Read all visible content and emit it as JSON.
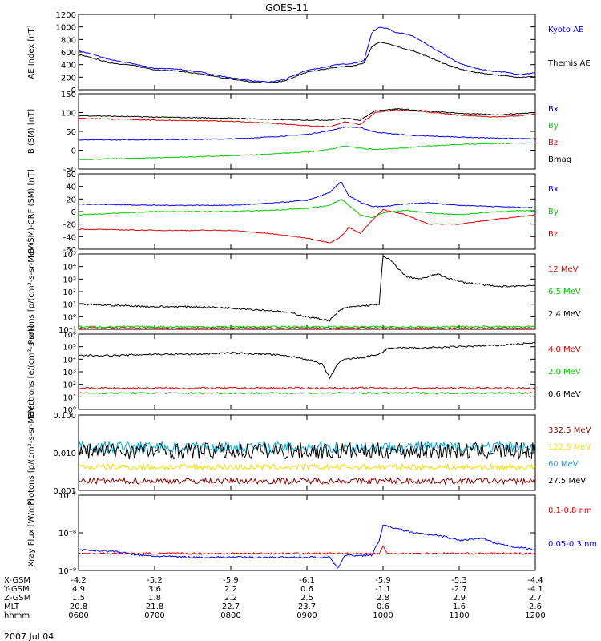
{
  "title": "GOES-11",
  "date": "2007 Jul 04",
  "colors": {
    "blue": "#0000ff",
    "green": "#00cc00",
    "red": "#dd0000",
    "black": "#000000",
    "darkred": "#8b0000",
    "yellow": "#eedd00",
    "cyan": "#00aadd"
  },
  "footer": {
    "rows": [
      {
        "label": "X-GSM",
        "values": [
          "-4.2",
          "-5.2",
          "-5.9",
          "-6.1",
          "-5.9",
          "-5.3",
          "-4.4"
        ]
      },
      {
        "label": "Y-GSM",
        "values": [
          "4.9",
          "3.6",
          "2.2",
          "0.6",
          "-1.1",
          "-2.7",
          "-4.1"
        ]
      },
      {
        "label": "Z-GSM",
        "values": [
          "1.5",
          "1.8",
          "2.2",
          "2.5",
          "2.8",
          "2.9",
          "2.7"
        ]
      },
      {
        "label": "MLT",
        "values": [
          "20.8",
          "21.8",
          "22.7",
          "23.7",
          "0.6",
          "1.6",
          "2.6"
        ]
      },
      {
        "label": "hhmm",
        "values": [
          "0600",
          "0700",
          "0800",
          "0900",
          "1000",
          "1100",
          "1200"
        ]
      }
    ]
  },
  "chart_data": [
    {
      "type": "line",
      "ylabel": "AE Index [nT]",
      "ylim": [
        0,
        1200
      ],
      "yticks": [
        "0",
        "200",
        "400",
        "600",
        "800",
        "1000",
        "1200"
      ],
      "scale": "linear",
      "xlim": [
        6.0,
        12.0
      ],
      "series": [
        {
          "name": "Kyoto AE",
          "color": "blue",
          "x": [
            6.0,
            6.2,
            6.4,
            6.7,
            7.0,
            7.3,
            7.6,
            8.0,
            8.3,
            8.5,
            8.7,
            9.0,
            9.2,
            9.4,
            9.6,
            9.75,
            9.85,
            9.95,
            10.05,
            10.15,
            10.25,
            10.4,
            10.6,
            10.8,
            11.0,
            11.2,
            11.4,
            11.6,
            11.8,
            12.0
          ],
          "y": [
            620,
            560,
            480,
            420,
            340,
            330,
            280,
            190,
            140,
            120,
            160,
            310,
            350,
            400,
            420,
            460,
            900,
            1000,
            980,
            920,
            900,
            850,
            700,
            560,
            420,
            350,
            300,
            280,
            240,
            270
          ]
        },
        {
          "name": "Themis AE",
          "color": "black",
          "x": [
            6.0,
            6.2,
            6.4,
            6.7,
            7.0,
            7.3,
            7.6,
            8.0,
            8.3,
            8.5,
            8.7,
            9.0,
            9.2,
            9.4,
            9.6,
            9.75,
            9.85,
            9.95,
            10.05,
            10.15,
            10.25,
            10.4,
            10.6,
            10.8,
            11.0,
            11.2,
            11.4,
            11.6,
            11.8,
            12.0
          ],
          "y": [
            560,
            500,
            430,
            390,
            320,
            300,
            250,
            170,
            120,
            110,
            140,
            280,
            320,
            360,
            380,
            420,
            680,
            760,
            740,
            700,
            660,
            620,
            520,
            420,
            330,
            280,
            250,
            220,
            200,
            210
          ]
        }
      ]
    },
    {
      "type": "line",
      "ylabel": "B (SM) [nT]",
      "ylim": [
        -50,
        150
      ],
      "yticks": [
        "-50",
        "0",
        "50",
        "100",
        "150"
      ],
      "scale": "linear",
      "xlim": [
        6.0,
        12.0
      ],
      "series": [
        {
          "name": "Bx",
          "color": "blue",
          "x": [
            6.0,
            7.0,
            8.0,
            8.5,
            9.0,
            9.3,
            9.5,
            9.7,
            9.9,
            10.2,
            10.5,
            11.0,
            11.5,
            12.0
          ],
          "y": [
            27,
            28,
            30,
            35,
            42,
            52,
            62,
            60,
            48,
            42,
            38,
            35,
            32,
            30
          ]
        },
        {
          "name": "By",
          "color": "green",
          "x": [
            6.0,
            7.0,
            8.0,
            8.5,
            9.0,
            9.3,
            9.5,
            9.7,
            9.9,
            10.2,
            10.5,
            11.0,
            11.5,
            12.0
          ],
          "y": [
            -25,
            -20,
            -15,
            -10,
            -5,
            2,
            12,
            5,
            2,
            5,
            10,
            15,
            18,
            20
          ]
        },
        {
          "name": "Bz",
          "color": "red",
          "x": [
            6.0,
            7.0,
            8.0,
            8.5,
            9.0,
            9.3,
            9.5,
            9.7,
            9.9,
            10.2,
            10.5,
            11.0,
            11.5,
            12.0
          ],
          "y": [
            85,
            80,
            77,
            72,
            65,
            62,
            75,
            68,
            100,
            108,
            103,
            93,
            88,
            95
          ]
        },
        {
          "name": "Bmag",
          "color": "black",
          "x": [
            6.0,
            7.0,
            8.0,
            8.5,
            9.0,
            9.3,
            9.5,
            9.7,
            9.9,
            10.2,
            10.5,
            11.0,
            11.5,
            12.0
          ],
          "y": [
            92,
            88,
            85,
            82,
            80,
            80,
            85,
            80,
            105,
            110,
            105,
            98,
            94,
            100
          ]
        }
      ]
    },
    {
      "type": "line",
      "ylabel": "B (SM)-CRF (SM) [nT]",
      "ylim": [
        -60,
        60
      ],
      "yticks": [
        "-60",
        "-40",
        "-20",
        "0",
        "20",
        "40",
        "60"
      ],
      "scale": "linear",
      "xlim": [
        6.0,
        12.0
      ],
      "series": [
        {
          "name": "Bx",
          "color": "blue",
          "x": [
            6.0,
            7.0,
            8.0,
            8.5,
            9.0,
            9.3,
            9.45,
            9.55,
            9.7,
            9.85,
            10.0,
            10.3,
            10.6,
            11.0,
            11.5,
            12.0
          ],
          "y": [
            12,
            10,
            10,
            13,
            18,
            30,
            48,
            25,
            15,
            8,
            8,
            12,
            14,
            10,
            8,
            6
          ]
        },
        {
          "name": "By",
          "color": "green",
          "x": [
            6.0,
            7.0,
            8.0,
            8.5,
            9.0,
            9.3,
            9.45,
            9.55,
            9.7,
            9.85,
            10.0,
            10.3,
            10.6,
            11.0,
            11.5,
            12.0
          ],
          "y": [
            -5,
            0,
            0,
            2,
            5,
            10,
            20,
            10,
            -5,
            -10,
            -2,
            2,
            -2,
            -5,
            0,
            2
          ]
        },
        {
          "name": "Bz",
          "color": "red",
          "x": [
            6.0,
            7.0,
            8.0,
            8.5,
            9.0,
            9.3,
            9.45,
            9.55,
            9.7,
            9.85,
            10.0,
            10.3,
            10.6,
            11.0,
            11.5,
            12.0
          ],
          "y": [
            -28,
            -30,
            -30,
            -35,
            -42,
            -50,
            -40,
            -25,
            -35,
            -15,
            3,
            -5,
            -20,
            -20,
            -12,
            -5
          ]
        }
      ]
    },
    {
      "type": "line",
      "ylabel": "Protons [p/(cm²-s-sr-MeV)]",
      "ylim": [
        -1,
        5
      ],
      "yticks": [
        "10⁻¹",
        "10⁰",
        "10¹",
        "10²",
        "10³",
        "10⁴",
        "10⁵"
      ],
      "scale": "log",
      "xlim": [
        6.0,
        12.0
      ],
      "series": [
        {
          "name": "12 MeV",
          "color": "red",
          "x": [
            6.0,
            12.0
          ],
          "y": [
            -0.9,
            -0.9
          ]
        },
        {
          "name": "6.5 MeV",
          "color": "green",
          "x": [
            6.0,
            12.0
          ],
          "y": [
            -0.8,
            -0.8
          ]
        },
        {
          "name": "2.4 MeV",
          "color": "black",
          "x": [
            6.0,
            6.5,
            7.0,
            7.5,
            8.0,
            8.5,
            8.8,
            9.0,
            9.2,
            9.3,
            9.45,
            9.6,
            9.8,
            9.95,
            10.0,
            10.1,
            10.3,
            10.5,
            10.7,
            11.0,
            11.5,
            12.0
          ],
          "y": [
            1.0,
            0.9,
            0.8,
            0.8,
            0.7,
            0.5,
            0.3,
            0.0,
            -0.2,
            -0.3,
            0.6,
            0.8,
            0.9,
            1.0,
            4.8,
            4.5,
            3.2,
            3.0,
            3.4,
            2.8,
            2.4,
            2.5
          ]
        }
      ]
    },
    {
      "type": "line",
      "ylabel": "Electrons [e/(cm²-s-sr)]",
      "ylim": [
        0,
        6
      ],
      "yticks": [
        "10⁰",
        "10¹",
        "10²",
        "10³",
        "10⁴",
        "10⁵",
        "10⁶"
      ],
      "scale": "log",
      "xlim": [
        6.0,
        12.0
      ],
      "series": [
        {
          "name": "4.0 MeV",
          "color": "red",
          "x": [
            6.0,
            12.0
          ],
          "y": [
            1.7,
            1.7
          ]
        },
        {
          "name": "2.0 MeV",
          "color": "green",
          "x": [
            6.0,
            12.0
          ],
          "y": [
            1.3,
            1.3
          ]
        },
        {
          "name": "0.6 MeV",
          "color": "black",
          "x": [
            6.0,
            6.5,
            7.0,
            7.5,
            8.0,
            8.5,
            8.8,
            9.0,
            9.2,
            9.3,
            9.4,
            9.5,
            9.7,
            9.95,
            10.05,
            10.2,
            10.5,
            11.0,
            11.5,
            12.0
          ],
          "y": [
            4.3,
            4.3,
            4.4,
            4.4,
            4.5,
            4.4,
            4.2,
            4.0,
            3.6,
            2.5,
            3.6,
            4.0,
            4.1,
            4.4,
            4.8,
            4.9,
            4.9,
            5.0,
            5.1,
            5.3
          ]
        }
      ]
    },
    {
      "type": "line",
      "ylabel": "Protons [p/(cm²-s-sr-MeV)]",
      "ylim": [
        -3,
        -1
      ],
      "yticks": [
        "0.001",
        "0.010",
        "0.100"
      ],
      "scale": "log",
      "xlim": [
        6.0,
        12.0
      ],
      "series": [
        {
          "name": "332.5 MeV",
          "color": "darkred",
          "level": -2.75,
          "noise": 0.08
        },
        {
          "name": "122.5 MeV",
          "color": "yellow",
          "level": -2.38,
          "noise": 0.08
        },
        {
          "name": "60 MeV",
          "color": "cyan",
          "level": -1.85,
          "noise": 0.15
        },
        {
          "name": "27.5 MeV",
          "color": "black",
          "level": -1.95,
          "noise": 0.22
        }
      ]
    },
    {
      "type": "line",
      "ylabel": "Xray Flux [W/m²]",
      "ylim": [
        -9,
        -7
      ],
      "yticks": [
        "10⁻⁹",
        "10⁻⁸",
        "10⁻⁷"
      ],
      "scale": "log",
      "xlim": [
        6.0,
        12.0
      ],
      "series": [
        {
          "name": "0.1-0.8 nm",
          "color": "red",
          "x": [
            6.0,
            9.95,
            10.0,
            10.05,
            12.0
          ],
          "y": [
            -8.55,
            -8.55,
            -8.35,
            -8.55,
            -8.55
          ]
        },
        {
          "name": "0.05-0.3 nm",
          "color": "blue",
          "x": [
            6.0,
            6.5,
            6.8,
            7.0,
            7.5,
            8.0,
            8.5,
            9.0,
            9.3,
            9.4,
            9.5,
            9.6,
            9.85,
            9.95,
            10.0,
            10.2,
            10.4,
            10.8,
            11.0,
            11.3,
            11.5,
            12.0
          ],
          "y": [
            -8.45,
            -8.5,
            -8.6,
            -8.62,
            -8.65,
            -8.65,
            -8.65,
            -8.65,
            -8.65,
            -8.95,
            -8.6,
            -8.6,
            -8.6,
            -8.2,
            -7.8,
            -7.9,
            -8.0,
            -8.1,
            -8.2,
            -8.15,
            -8.3,
            -8.45
          ]
        }
      ]
    }
  ]
}
